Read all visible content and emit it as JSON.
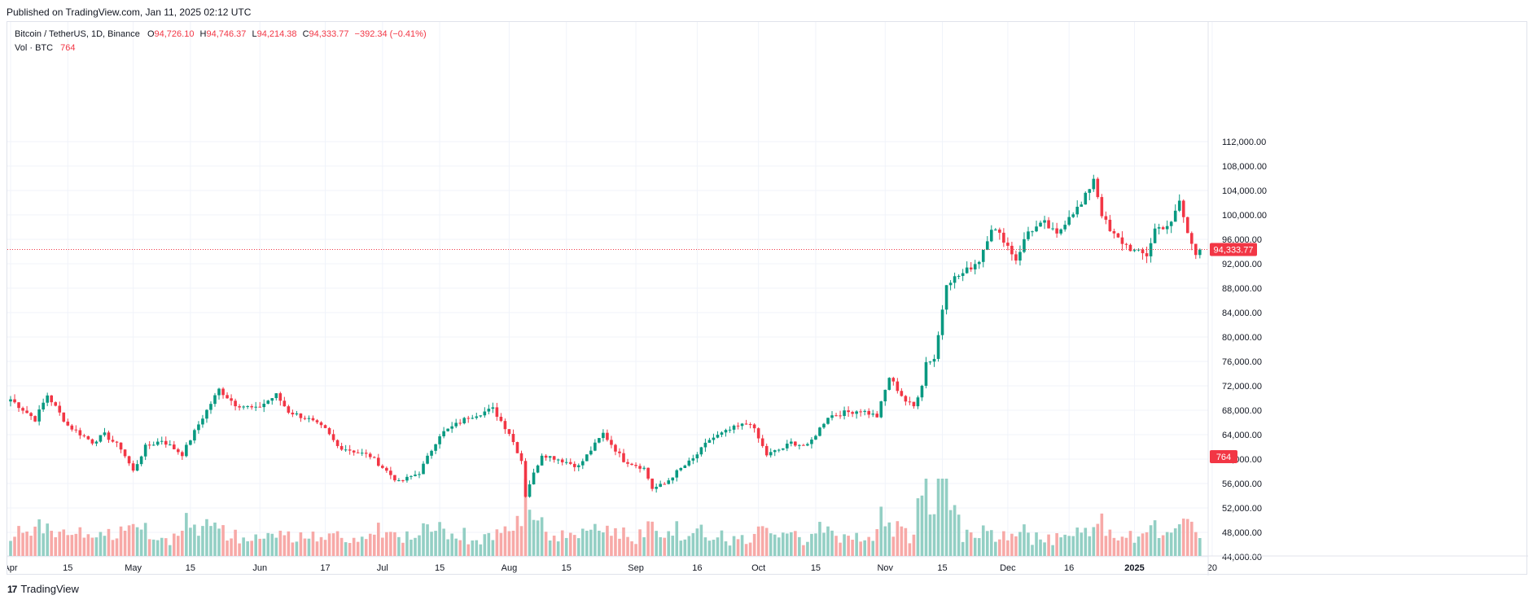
{
  "header": {
    "published": "Published on TradingView.com, Jan 11, 2025 02:12 UTC"
  },
  "legend": {
    "symbol": "Bitcoin / TetherUS, 1D, Binance",
    "o_label": "O",
    "o": "94,726.10",
    "h_label": "H",
    "h": "94,746.37",
    "l_label": "L",
    "l": "94,214.38",
    "c_label": "C",
    "c": "94,333.77",
    "change": "−392.34 (−0.41%)",
    "vol_label": "Vol · BTC",
    "vol": "764"
  },
  "footer": {
    "brand": "TradingView",
    "logo_text": "17"
  },
  "colors": {
    "up": "#089981",
    "down": "#f23645",
    "up_vol": "#93cfc4",
    "down_vol": "#f7a9a7",
    "grid": "#f0f3fa",
    "text": "#131722"
  },
  "chart_data": {
    "type": "candlestick",
    "symbol": "BTCUSDT",
    "interval": "1D",
    "exchange": "Binance",
    "start_date": "2024-04-01",
    "y_ticks": [
      "112,000.00",
      "108,000.00",
      "104,000.00",
      "100,000.00",
      "96,000.00",
      "92,000.00",
      "88,000.00",
      "84,000.00",
      "80,000.00",
      "76,000.00",
      "72,000.00",
      "68,000.00",
      "64,000.00",
      "60,000.00",
      "56,000.00",
      "52,000.00",
      "48,000.00",
      "44,000.00"
    ],
    "ylim": [
      43000,
      115000
    ],
    "x_ticks": [
      {
        "label": "Apr",
        "day": 0
      },
      {
        "label": "15",
        "day": 14
      },
      {
        "label": "May",
        "day": 30
      },
      {
        "label": "15",
        "day": 44
      },
      {
        "label": "Jun",
        "day": 61
      },
      {
        "label": "17",
        "day": 77
      },
      {
        "label": "Jul",
        "day": 91
      },
      {
        "label": "15",
        "day": 105
      },
      {
        "label": "Aug",
        "day": 122
      },
      {
        "label": "15",
        "day": 136
      },
      {
        "label": "Sep",
        "day": 153
      },
      {
        "label": "16",
        "day": 168
      },
      {
        "label": "Oct",
        "day": 183
      },
      {
        "label": "15",
        "day": 197
      },
      {
        "label": "Nov",
        "day": 214
      },
      {
        "label": "15",
        "day": 228
      },
      {
        "label": "Dec",
        "day": 244
      },
      {
        "label": "16",
        "day": 259
      },
      {
        "label": "2025",
        "day": 275
      },
      {
        "label": "20",
        "day": 294
      }
    ],
    "last_price_label": "94,333.77",
    "last_volume_label": "764",
    "close_anchors": [
      [
        0,
        69800
      ],
      [
        6,
        66500
      ],
      [
        9,
        70500
      ],
      [
        14,
        65500
      ],
      [
        20,
        62800
      ],
      [
        23,
        64000
      ],
      [
        27,
        61800
      ],
      [
        30,
        58000
      ],
      [
        33,
        62000
      ],
      [
        37,
        63100
      ],
      [
        42,
        60800
      ],
      [
        46,
        65700
      ],
      [
        51,
        71400
      ],
      [
        55,
        69000
      ],
      [
        60,
        68200
      ],
      [
        65,
        70500
      ],
      [
        68,
        67800
      ],
      [
        73,
        66500
      ],
      [
        77,
        64800
      ],
      [
        80,
        62100
      ],
      [
        88,
        60500
      ],
      [
        95,
        56200
      ],
      [
        100,
        57800
      ],
      [
        105,
        64000
      ],
      [
        112,
        66900
      ],
      [
        118,
        68200
      ],
      [
        122,
        64300
      ],
      [
        125,
        59800
      ],
      [
        126,
        54000
      ],
      [
        127,
        56000
      ],
      [
        130,
        60800
      ],
      [
        134,
        60000
      ],
      [
        139,
        58800
      ],
      [
        145,
        64200
      ],
      [
        150,
        59800
      ],
      [
        155,
        58500
      ],
      [
        157,
        55200
      ],
      [
        160,
        55900
      ],
      [
        163,
        57900
      ],
      [
        167,
        60000
      ],
      [
        171,
        63200
      ],
      [
        177,
        65100
      ],
      [
        181,
        66000
      ],
      [
        185,
        60700
      ],
      [
        189,
        61800
      ],
      [
        191,
        62700
      ],
      [
        195,
        62100
      ],
      [
        200,
        67000
      ],
      [
        204,
        67600
      ],
      [
        208,
        68000
      ],
      [
        212,
        67000
      ],
      [
        215,
        73400
      ],
      [
        219,
        69500
      ],
      [
        221,
        68600
      ],
      [
        223,
        72300
      ],
      [
        224,
        75900
      ],
      [
        226,
        76500
      ],
      [
        227,
        80300
      ],
      [
        229,
        89000
      ],
      [
        233,
        90400
      ],
      [
        237,
        92600
      ],
      [
        240,
        98000
      ],
      [
        243,
        96000
      ],
      [
        246,
        92700
      ],
      [
        249,
        97300
      ],
      [
        253,
        98600
      ],
      [
        256,
        96600
      ],
      [
        259,
        100000
      ],
      [
        262,
        101600
      ],
      [
        264,
        104500
      ],
      [
        265,
        106100
      ],
      [
        267,
        100200
      ],
      [
        269,
        97200
      ],
      [
        272,
        95500
      ],
      [
        275,
        94000
      ],
      [
        278,
        93400
      ],
      [
        280,
        97700
      ],
      [
        284,
        98500
      ],
      [
        286,
        102300
      ],
      [
        288,
        96900
      ],
      [
        290,
        93900
      ],
      [
        291,
        94333.77
      ]
    ],
    "volume_max_btc": 85000
  }
}
